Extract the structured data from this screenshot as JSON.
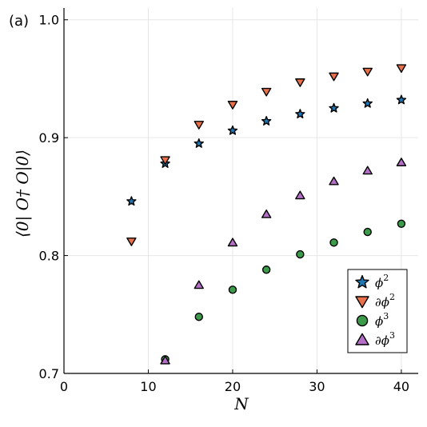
{
  "panel_label": "(a)",
  "chart_data": {
    "type": "scatter",
    "xlabel": "N",
    "ylabel": "⟨0| O† O|0⟩",
    "xlim": [
      0,
      42
    ],
    "ylim": [
      0.7,
      1.01
    ],
    "x_ticks": [
      0,
      10,
      20,
      30,
      40
    ],
    "y_ticks": [
      0.7,
      0.8,
      0.9,
      1.0
    ],
    "x_tick_labels": [
      "0",
      "10",
      "20",
      "30",
      "40"
    ],
    "y_tick_labels": [
      "0.7",
      "0.8",
      "0.9",
      "1.0"
    ],
    "grid": true,
    "legend_position": "bottom-right",
    "series": [
      {
        "name": "ϕ²",
        "label_base": "ϕ",
        "label_prefix": "",
        "label_sup": "2",
        "marker": "star",
        "color": "#1f77b4",
        "x": [
          8,
          12,
          16,
          20,
          24,
          28,
          32,
          36,
          40
        ],
        "y": [
          0.846,
          0.878,
          0.895,
          0.906,
          0.914,
          0.92,
          0.925,
          0.929,
          0.932
        ]
      },
      {
        "name": "∂ϕ²",
        "label_base": "ϕ",
        "label_prefix": "∂",
        "label_sup": "2",
        "marker": "triangle-down",
        "color": "#e8704a",
        "x": [
          8,
          12,
          16,
          20,
          24,
          28,
          32,
          36,
          40
        ],
        "y": [
          0.812,
          0.881,
          0.911,
          0.928,
          0.939,
          0.947,
          0.952,
          0.956,
          0.959
        ]
      },
      {
        "name": "ϕ³",
        "label_base": "ϕ",
        "label_prefix": "",
        "label_sup": "3",
        "marker": "circle",
        "color": "#3c9b4a",
        "x": [
          12,
          16,
          20,
          24,
          28,
          32,
          36,
          40
        ],
        "y": [
          0.712,
          0.748,
          0.771,
          0.788,
          0.801,
          0.811,
          0.82,
          0.827
        ]
      },
      {
        "name": "∂ϕ³",
        "label_base": "ϕ",
        "label_prefix": "∂",
        "label_sup": "3",
        "marker": "triangle-up",
        "color": "#b36fc6",
        "x": [
          12,
          16,
          20,
          24,
          28,
          32,
          36,
          40
        ],
        "y": [
          0.711,
          0.775,
          0.811,
          0.835,
          0.851,
          0.863,
          0.872,
          0.879
        ]
      }
    ]
  }
}
